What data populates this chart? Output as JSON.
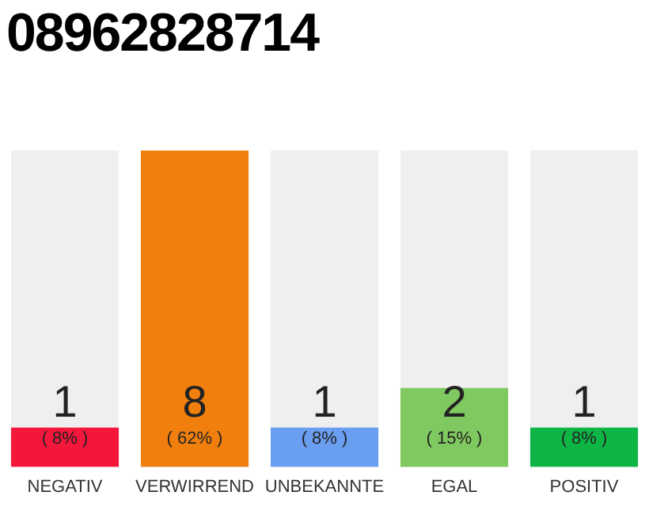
{
  "chart_data": {
    "type": "bar",
    "title": "08962828714",
    "categories": [
      "NEGATIV",
      "VERWIRREND",
      "UNBEKANNTE",
      "EGAL",
      "POSITIV"
    ],
    "values": [
      1,
      8,
      1,
      2,
      1
    ],
    "colors": [
      "#f5163b",
      "#f07f0d",
      "#6a9ef0",
      "#80c860",
      "#0db545"
    ],
    "data_labels": true,
    "annotations": [
      "( 8% )",
      "( 62% )",
      "( 8% )",
      "( 15% )",
      "( 8% )"
    ],
    "grid": false,
    "legend": false,
    "tick_labels": "x"
  }
}
